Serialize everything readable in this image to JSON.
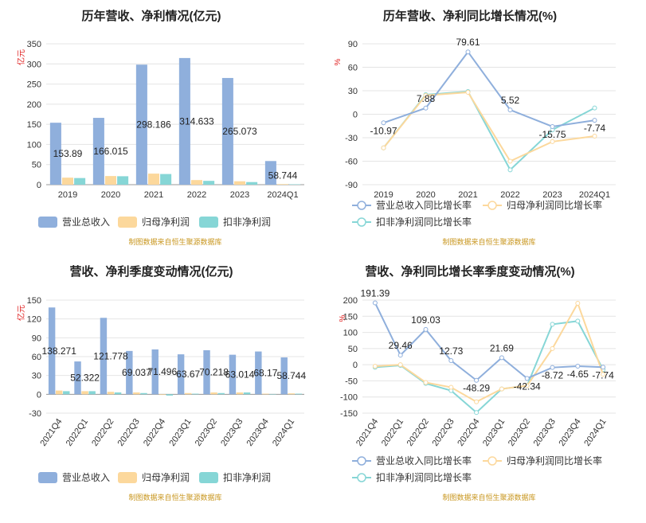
{
  "colors": {
    "revenue": "#8fafdc",
    "net_profit": "#fcd89c",
    "deducted_profit": "#86d6d6",
    "grid": "#e4e4e4",
    "axis_text": "#333333",
    "unit_red": "#e02020",
    "source_text": "#c8961e"
  },
  "source_note": "制图数据来自恒生聚源数据库",
  "chart_data": [
    {
      "id": "annual_amount",
      "type": "bar",
      "title": "历年营收、净利情况(亿元)",
      "ylabel": "亿元",
      "ylim": [
        0,
        350
      ],
      "yticks": [
        0,
        50,
        100,
        150,
        200,
        250,
        300,
        350
      ],
      "categories": [
        "2019",
        "2020",
        "2021",
        "2022",
        "2023",
        "2024Q1"
      ],
      "series": [
        {
          "name": "营业总收入",
          "values": [
            153.89,
            166.015,
            298.186,
            314.633,
            265.073,
            58.744
          ]
        },
        {
          "name": "归母净利润",
          "values": [
            17.5,
            21.5,
            27.5,
            11.5,
            8.5,
            1.5
          ]
        },
        {
          "name": "扣非净利润",
          "values": [
            16.5,
            21.0,
            26.5,
            9.5,
            6.5,
            1.0
          ]
        }
      ],
      "labels": [
        "153.89",
        "166.015",
        "298.186",
        "314.633",
        "265.073",
        "58.744"
      ]
    },
    {
      "id": "annual_growth",
      "type": "line",
      "title": "历年营收、净利同比增长情况(%)",
      "ylabel": "%",
      "ylim": [
        -90,
        90
      ],
      "yticks": [
        -90,
        -60,
        -30,
        0,
        30,
        60,
        90
      ],
      "categories": [
        "2019",
        "2020",
        "2021",
        "2022",
        "2023",
        "2024Q1"
      ],
      "series": [
        {
          "name": "营业总收入同比增长率",
          "values": [
            -10.97,
            7.88,
            79.61,
            5.52,
            -15.75,
            -7.74
          ]
        },
        {
          "name": "归母净利润同比增长率",
          "values": [
            -43,
            24,
            28,
            -60,
            -35,
            -28
          ]
        },
        {
          "name": "扣非净利润同比增长率",
          "values": [
            -43,
            25,
            29,
            -71,
            -20,
            8
          ]
        }
      ],
      "labels": [
        "-10.97",
        "7.88",
        "79.61",
        "5.52",
        "-15.75",
        "-7.74"
      ]
    },
    {
      "id": "quarterly_amount",
      "type": "bar",
      "title": "营收、净利季度变动情况(亿元)",
      "ylabel": "亿元",
      "ylim": [
        -30,
        150
      ],
      "yticks": [
        -30,
        0,
        30,
        60,
        90,
        120,
        150
      ],
      "categories": [
        "2021Q4",
        "2022Q1",
        "2022Q2",
        "2022Q3",
        "2022Q4",
        "2023Q1",
        "2023Q2",
        "2023Q3",
        "2023Q4",
        "2024Q1"
      ],
      "series": [
        {
          "name": "营业总收入",
          "values": [
            138.271,
            52.322,
            121.778,
            69.037,
            71.496,
            63.67,
            70.218,
            63.014,
            68.17,
            58.744
          ]
        },
        {
          "name": "归母净利润",
          "values": [
            6,
            5,
            4,
            3,
            -1,
            2,
            3,
            3,
            1,
            1.5
          ]
        },
        {
          "name": "扣非净利润",
          "values": [
            5,
            5,
            3,
            2,
            -2,
            1,
            2,
            3,
            0.5,
            1
          ]
        }
      ],
      "labels": [
        "138.271",
        "52.322",
        "121.778",
        "69.037",
        "71.496",
        "63.67",
        "70.218",
        "63.014",
        "68.17",
        "58.744"
      ]
    },
    {
      "id": "quarterly_growth",
      "type": "line",
      "title": "营收、净利同比增长率季度变动情况(%)",
      "ylabel": "%",
      "ylim": [
        -150,
        200
      ],
      "yticks": [
        -150,
        -100,
        -50,
        0,
        50,
        100,
        150,
        200
      ],
      "categories": [
        "2021Q4",
        "2022Q1",
        "2022Q2",
        "2022Q3",
        "2022Q4",
        "2023Q1",
        "2023Q2",
        "2023Q3",
        "2023Q4",
        "2024Q1"
      ],
      "series": [
        {
          "name": "营业总收入同比增长率",
          "values": [
            191.39,
            29.46,
            109.03,
            12.73,
            -48.29,
            21.69,
            -42.34,
            -8.72,
            -4.65,
            -7.74
          ]
        },
        {
          "name": "归母净利润同比增长率",
          "values": [
            -5,
            0,
            -55,
            -70,
            -115,
            -75,
            -65,
            50,
            190,
            -30
          ]
        },
        {
          "name": "扣非净利润同比增长率",
          "values": [
            -8,
            -2,
            -58,
            -80,
            -148,
            -75,
            -65,
            125,
            135,
            -15
          ]
        }
      ],
      "labels": [
        "191.39",
        "29.46",
        "109.03",
        "12.73",
        "-48.29",
        "21.69",
        "-42.34",
        "-8.72",
        "-4.65",
        "-7.74"
      ]
    }
  ]
}
